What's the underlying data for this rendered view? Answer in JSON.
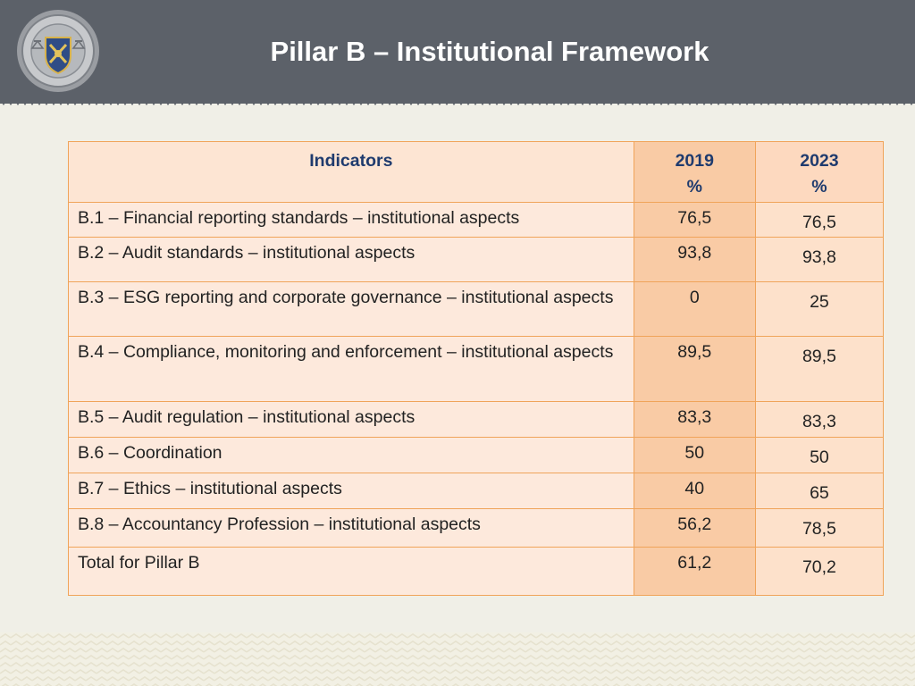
{
  "header": {
    "title": "Pillar B – Institutional Framework",
    "background_color": "#5c6169"
  },
  "logo": {
    "icon": "emblem-seal-icon"
  },
  "table": {
    "columns": [
      "Indicators",
      "2019\n%",
      "2023\n%"
    ],
    "rows": [
      {
        "indicator": "B.1 – Financial reporting standards – institutional aspects",
        "y2019": "76,5",
        "y2023": "76,5"
      },
      {
        "indicator": "B.2 – Audit standards – institutional aspects",
        "y2019": "93,8",
        "y2023": "93,8"
      },
      {
        "indicator": "B.3 – ESG reporting and corporate governance – institutional aspects",
        "y2019": "0",
        "y2023": "25"
      },
      {
        "indicator": "B.4 – Compliance, monitoring and enforcement – institutional aspects",
        "y2019": "89,5",
        "y2023": "89,5"
      },
      {
        "indicator": "B.5 – Audit regulation – institutional aspects",
        "y2019": "83,3",
        "y2023": "83,3"
      },
      {
        "indicator": "B.6 – Coordination",
        "y2019": "50",
        "y2023": "50"
      },
      {
        "indicator": "B.7 – Ethics – institutional aspects",
        "y2019": "40",
        "y2023": "65"
      },
      {
        "indicator": "B.8 – Accountancy Profession – institutional aspects",
        "y2019": "56,2",
        "y2023": "78,5"
      },
      {
        "indicator": "Total for Pillar B",
        "y2019": "61,2",
        "y2023": "70,2"
      }
    ]
  },
  "colors": {
    "border": "#f0a45a",
    "header_text": "#1f3b6e",
    "col2019_bg": "#f9cba5",
    "col2023_bg": "#fde1cb",
    "indicator_bg": "#fde9dc"
  }
}
